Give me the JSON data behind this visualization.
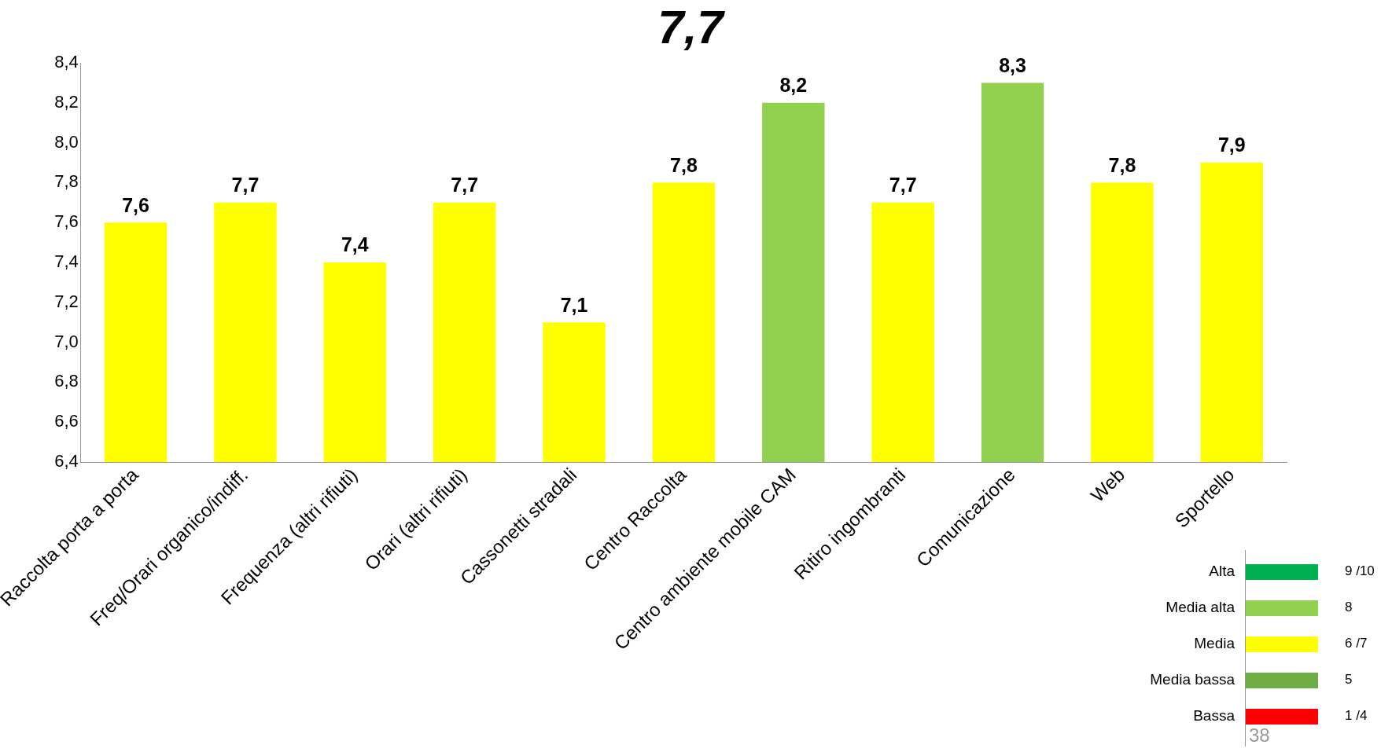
{
  "chart_data": [
    {
      "type": "bar",
      "title": "7,7",
      "categories": [
        "Raccolta porta a porta",
        "Freq/Orari organico/indiff.",
        "Frequenza (altri rifiuti)",
        "Orari (altri rifiuti)",
        "Cassonetti stradali",
        "Centro Raccolta",
        "Centro ambiente mobile CAM",
        "Ritiro ingombranti",
        "Comunicazione",
        "Web",
        "Sportello"
      ],
      "values": [
        7.6,
        7.7,
        7.4,
        7.7,
        7.1,
        7.8,
        8.2,
        7.7,
        8.3,
        7.8,
        7.9
      ],
      "value_labels": [
        "7,6",
        "7,7",
        "7,4",
        "7,7",
        "7,1",
        "7,8",
        "8,2",
        "7,7",
        "8,3",
        "7,8",
        "7,9"
      ],
      "colors": [
        "#ffff00",
        "#ffff00",
        "#ffff00",
        "#ffff00",
        "#ffff00",
        "#ffff00",
        "#92d050",
        "#ffff00",
        "#92d050",
        "#ffff00",
        "#ffff00"
      ],
      "ylim": [
        6.4,
        8.4
      ],
      "yticks": [
        {
          "value": 6.4,
          "label": "6,4"
        },
        {
          "value": 6.6,
          "label": "6,6"
        },
        {
          "value": 6.8,
          "label": "6,8"
        },
        {
          "value": 7.0,
          "label": "7,0"
        },
        {
          "value": 7.2,
          "label": "7,2"
        },
        {
          "value": 7.4,
          "label": "7,4"
        },
        {
          "value": 7.6,
          "label": "7,6"
        },
        {
          "value": 7.8,
          "label": "7,8"
        },
        {
          "value": 8.0,
          "label": "8,0"
        },
        {
          "value": 8.2,
          "label": "8,2"
        },
        {
          "value": 8.4,
          "label": "8,4"
        }
      ],
      "grid": false,
      "legend": false,
      "annotations": [
        "38"
      ]
    },
    {
      "type": "other",
      "categories": [
        "Alta",
        "Media alta",
        "Media",
        "Media bassa",
        "Bassa"
      ],
      "annotations": [
        "9 /10",
        "8",
        "6 /7",
        "5",
        "1 /4"
      ],
      "colors": [
        "#00b050",
        "#92d050",
        "#ffff00",
        "#70ad47",
        "#ff0000"
      ]
    }
  ]
}
